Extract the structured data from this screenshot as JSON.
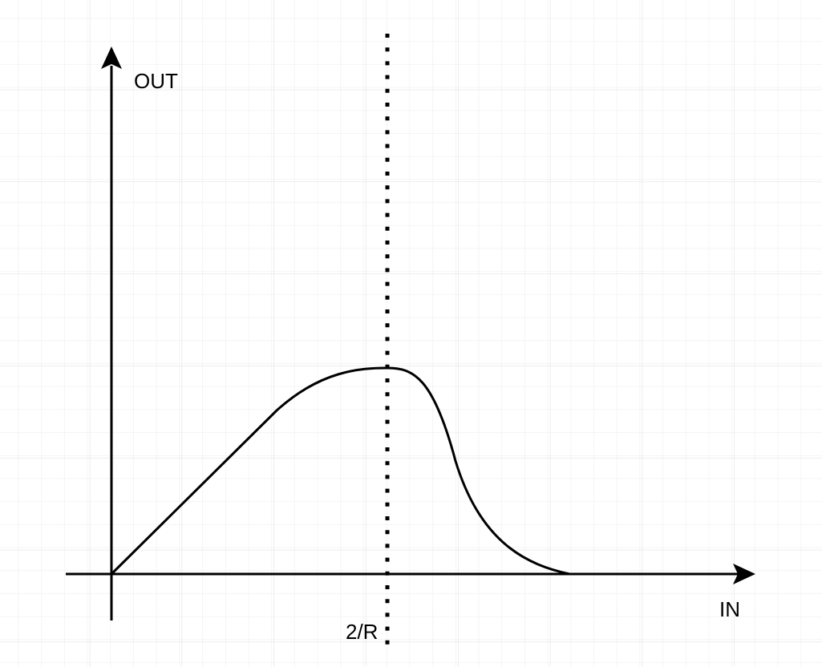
{
  "diagram": {
    "y_axis_label": "OUT",
    "x_axis_label": "IN",
    "marker_label": "2/R",
    "colors": {
      "background": "#ffffff",
      "grid": "#e4e4e4",
      "stroke": "#000000"
    }
  }
}
